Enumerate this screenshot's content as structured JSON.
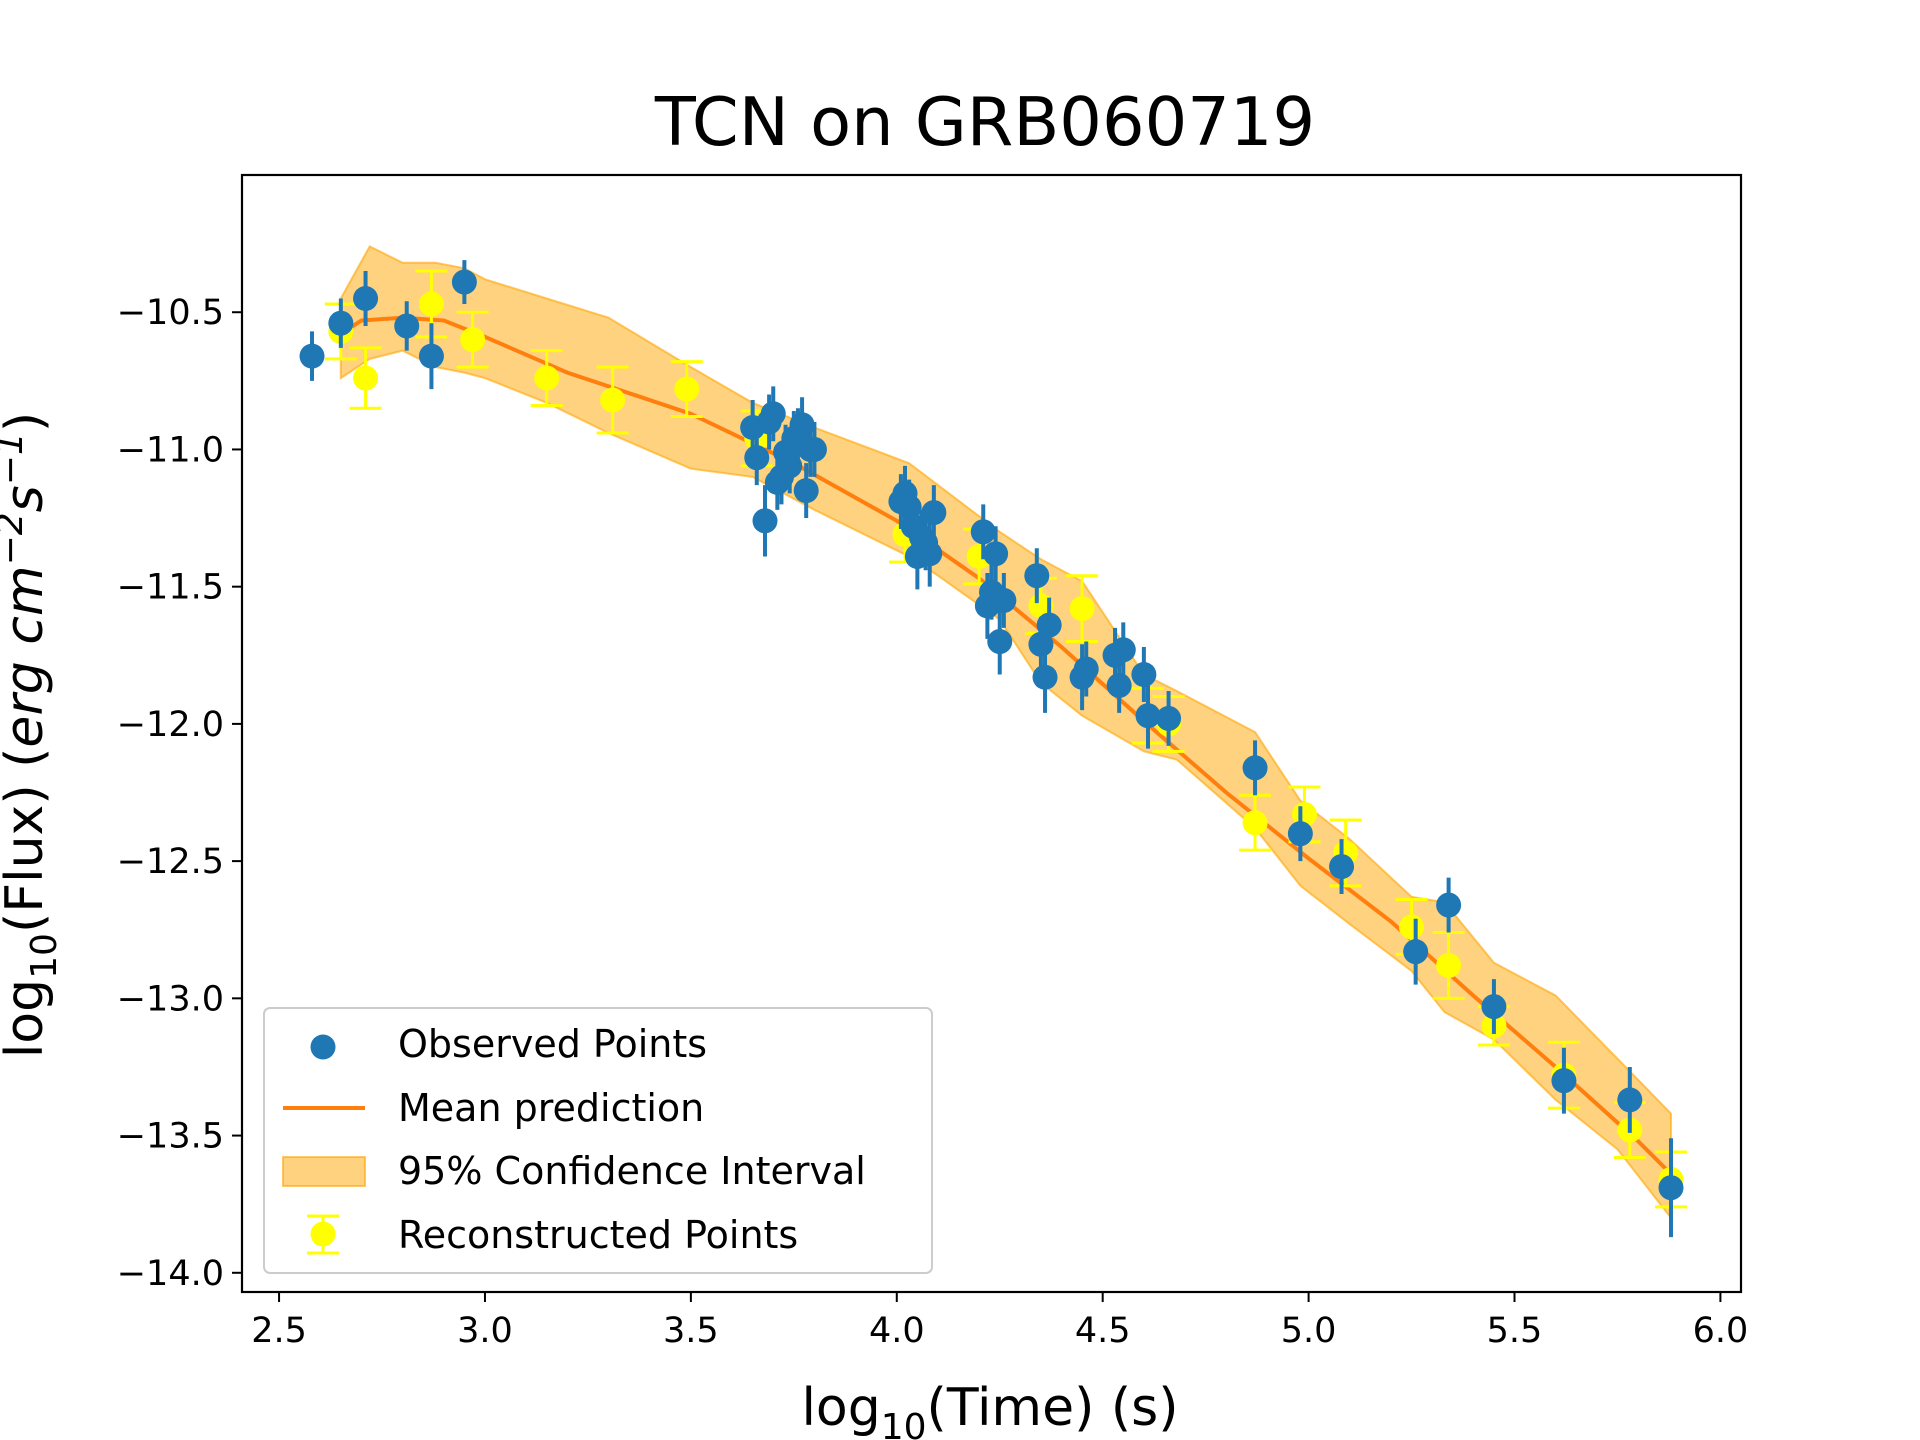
{
  "chart_data": {
    "type": "scatter",
    "title": "TCN on GRB060719",
    "xlabel_main": "log",
    "xlabel_sub": "10",
    "xlabel_rest": "(Time) (s)",
    "ylabel_main": "log",
    "ylabel_sub": "10",
    "ylabel_rest": "(Flux) (",
    "ylabel_unit_a": "erg cm",
    "ylabel_unit_a_exp": "−2",
    "ylabel_unit_b": "s",
    "ylabel_unit_b_exp": "−1",
    "ylabel_close": ")",
    "xlim": [
      2.41,
      6.05
    ],
    "ylim": [
      -14.07,
      -10.0
    ],
    "xticks": [
      2.5,
      3.0,
      3.5,
      4.0,
      4.5,
      5.0,
      5.5,
      6.0
    ],
    "xtick_labels": [
      "2.5",
      "3.0",
      "3.5",
      "4.0",
      "4.5",
      "5.0",
      "5.5",
      "6.0"
    ],
    "yticks": [
      -10.5,
      -11.0,
      -11.5,
      -12.0,
      -12.5,
      -13.0,
      -13.5,
      -14.0
    ],
    "ytick_labels": [
      "−10.5",
      "−11.0",
      "−11.5",
      "−12.0",
      "−12.5",
      "−13.0",
      "−13.5",
      "−14.0"
    ],
    "grid": false,
    "legend_position": "lower-left",
    "legend": {
      "observed": "Observed Points",
      "mean": "Mean prediction",
      "ci": "95% Confidence Interval",
      "reconstructed": "Reconstructed Points"
    },
    "colors": {
      "observed": "#1f77b4",
      "mean": "#ff7f0e",
      "ci_fill": "#ffa500",
      "reconstructed": "#ffff00"
    },
    "mean_prediction": {
      "x": [
        2.65,
        2.7,
        2.8,
        2.9,
        3.0,
        3.2,
        3.5,
        3.75,
        4.0,
        4.2,
        4.4,
        4.6,
        4.8,
        5.0,
        5.2,
        5.4,
        5.6,
        5.8,
        5.88
      ],
      "y": [
        -10.58,
        -10.53,
        -10.52,
        -10.53,
        -10.59,
        -10.72,
        -10.87,
        -11.05,
        -11.26,
        -11.47,
        -11.72,
        -11.99,
        -12.25,
        -12.49,
        -12.72,
        -12.99,
        -13.25,
        -13.52,
        -13.64
      ]
    },
    "confidence_interval": {
      "x": [
        2.65,
        2.72,
        2.8,
        2.88,
        2.95,
        3.0,
        3.15,
        3.3,
        3.5,
        3.65,
        3.8,
        4.03,
        4.1,
        4.25,
        4.35,
        4.45,
        4.6,
        4.68,
        4.87,
        4.98,
        5.1,
        5.25,
        5.33,
        5.45,
        5.6,
        5.75,
        5.88
      ],
      "upper": [
        -10.45,
        -10.26,
        -10.32,
        -10.32,
        -10.34,
        -10.38,
        -10.45,
        -10.52,
        -10.7,
        -10.83,
        -10.92,
        -11.05,
        -11.13,
        -11.3,
        -11.4,
        -11.48,
        -11.82,
        -11.88,
        -12.03,
        -12.28,
        -12.42,
        -12.63,
        -12.65,
        -12.87,
        -12.99,
        -13.22,
        -13.42
      ],
      "lower": [
        -10.74,
        -10.67,
        -10.64,
        -10.7,
        -10.72,
        -10.74,
        -10.83,
        -10.94,
        -11.07,
        -11.1,
        -11.22,
        -11.39,
        -11.46,
        -11.62,
        -11.85,
        -11.97,
        -12.1,
        -12.13,
        -12.38,
        -12.59,
        -12.73,
        -12.9,
        -13.05,
        -13.15,
        -13.37,
        -13.55,
        -13.8
      ]
    },
    "observed_points": {
      "x": [
        2.58,
        2.65,
        2.71,
        2.81,
        2.87,
        2.95,
        3.65,
        3.66,
        3.68,
        3.69,
        3.7,
        3.71,
        3.72,
        3.73,
        3.74,
        3.75,
        3.76,
        3.77,
        3.78,
        3.79,
        3.8,
        4.01,
        4.02,
        4.03,
        4.04,
        4.05,
        4.06,
        4.07,
        4.08,
        4.09,
        4.21,
        4.22,
        4.23,
        4.24,
        4.25,
        4.26,
        4.34,
        4.35,
        4.36,
        4.37,
        4.45,
        4.46,
        4.53,
        4.54,
        4.55,
        4.6,
        4.61,
        4.66,
        4.87,
        4.98,
        5.08,
        5.26,
        5.34,
        5.45,
        5.62,
        5.78,
        5.88
      ],
      "y": [
        -10.66,
        -10.54,
        -10.45,
        -10.55,
        -10.66,
        -10.39,
        -10.92,
        -11.03,
        -11.26,
        -10.9,
        -10.87,
        -11.12,
        -11.1,
        -11.01,
        -11.06,
        -10.96,
        -10.95,
        -10.91,
        -11.15,
        -11.0,
        -11.0,
        -11.19,
        -11.16,
        -11.21,
        -11.28,
        -11.39,
        -11.32,
        -11.34,
        -11.38,
        -11.23,
        -11.3,
        -11.57,
        -11.52,
        -11.38,
        -11.7,
        -11.55,
        -11.46,
        -11.71,
        -11.83,
        -11.64,
        -11.83,
        -11.8,
        -11.75,
        -11.86,
        -11.73,
        -11.82,
        -11.97,
        -11.98,
        -12.16,
        -12.4,
        -12.52,
        -12.83,
        -12.66,
        -13.03,
        -13.3,
        -13.37,
        -13.69
      ],
      "yerr": [
        0.09,
        0.09,
        0.1,
        0.09,
        0.12,
        0.08,
        0.1,
        0.1,
        0.13,
        0.1,
        0.1,
        0.1,
        0.1,
        0.1,
        0.1,
        0.1,
        0.1,
        0.1,
        0.1,
        0.1,
        0.1,
        0.1,
        0.1,
        0.1,
        0.1,
        0.12,
        0.1,
        0.1,
        0.12,
        0.1,
        0.1,
        0.12,
        0.1,
        0.1,
        0.12,
        0.1,
        0.1,
        0.1,
        0.13,
        0.1,
        0.12,
        0.1,
        0.1,
        0.1,
        0.1,
        0.1,
        0.12,
        0.1,
        0.1,
        0.1,
        0.1,
        0.12,
        0.1,
        0.1,
        0.12,
        0.12,
        0.18
      ]
    },
    "reconstructed_points": {
      "x": [
        2.65,
        2.71,
        2.87,
        2.97,
        3.15,
        3.31,
        3.49,
        3.66,
        4.02,
        4.2,
        4.35,
        4.45,
        4.61,
        4.66,
        4.87,
        4.99,
        5.09,
        5.25,
        5.34,
        5.45,
        5.62,
        5.78,
        5.88
      ],
      "y": [
        -10.57,
        -10.74,
        -10.47,
        -10.6,
        -10.74,
        -10.82,
        -10.78,
        -10.96,
        -11.31,
        -11.39,
        -11.57,
        -11.58,
        -11.97,
        -12.0,
        -12.36,
        -12.33,
        -12.47,
        -12.74,
        -12.88,
        -13.1,
        -13.28,
        -13.48,
        -13.66
      ],
      "yerr": [
        0.1,
        0.11,
        0.12,
        0.1,
        0.1,
        0.12,
        0.1,
        0.1,
        0.1,
        0.1,
        0.1,
        0.12,
        0.1,
        0.1,
        0.1,
        0.1,
        0.12,
        0.1,
        0.12,
        0.07,
        0.12,
        0.1,
        0.1
      ]
    }
  }
}
